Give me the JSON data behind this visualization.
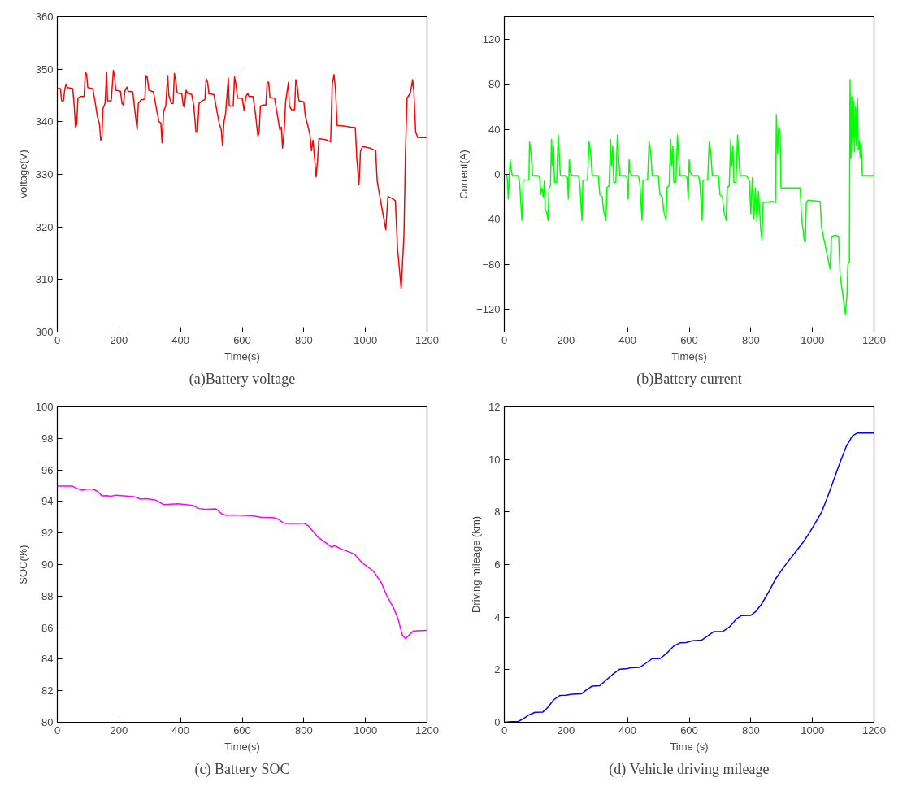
{
  "chart_data": [
    {
      "type": "line",
      "title": "(a)Battery voltage",
      "xlabel": "Time(s)",
      "ylabel": "Voltage(V)",
      "xlim": [
        0,
        1200
      ],
      "xticks": [
        0,
        200,
        400,
        600,
        800,
        1000,
        1200
      ],
      "ylim": [
        300,
        360
      ],
      "yticks": [
        300,
        310,
        320,
        330,
        340,
        350,
        360
      ],
      "grid": false,
      "series": [
        {
          "color": "#ff0000",
          "x": [
            0,
            10,
            14,
            20,
            24,
            28,
            33,
            50,
            55,
            59,
            63,
            67,
            75,
            87,
            91,
            95,
            99,
            115,
            122,
            130,
            137,
            141,
            145,
            148,
            155,
            160,
            163,
            175,
            182,
            186,
            190,
            205,
            210,
            214,
            220,
            226,
            230,
            245,
            252,
            259,
            263,
            272,
            284,
            288,
            292,
            297,
            312,
            320,
            330,
            336,
            340,
            345,
            352,
            358,
            362,
            370,
            376,
            380,
            384,
            389,
            404,
            409,
            413,
            418,
            424,
            436,
            443,
            450,
            455,
            460,
            470,
            479,
            483,
            488,
            492,
            508,
            515,
            526,
            532,
            536,
            541,
            546,
            555,
            558,
            571,
            575,
            580,
            585,
            600,
            606,
            612,
            618,
            622,
            635,
            642,
            651,
            655,
            659,
            668,
            677,
            681,
            686,
            690,
            705,
            712,
            722,
            727,
            731,
            736,
            741,
            750,
            753,
            760,
            770,
            774,
            778,
            784,
            800,
            805,
            812,
            816,
            820,
            825,
            830,
            835,
            840,
            845,
            849,
            870,
            887,
            892,
            898,
            903,
            908,
            930,
            950,
            967,
            972,
            979,
            984,
            991,
            1015,
            1033,
            1038,
            1052,
            1066,
            1073,
            1090,
            1097,
            1104,
            1116,
            1125,
            1130,
            1135,
            1146,
            1153,
            1157,
            1163,
            1170,
            1200
          ],
          "values": [
            346.3,
            346.3,
            344,
            344,
            346,
            347.2,
            346.5,
            346.3,
            343,
            339,
            339.5,
            344.5,
            344.8,
            344.8,
            349.5,
            349,
            346.5,
            346.3,
            344,
            341,
            339.5,
            336.5,
            337,
            342.5,
            343.5,
            349.5,
            344,
            344,
            349.8,
            348.5,
            346,
            345.8,
            343.5,
            343.2,
            346,
            346.6,
            345.8,
            345.7,
            342,
            338.5,
            343.5,
            344.2,
            344.3,
            348.8,
            348.5,
            346,
            345.7,
            343,
            340,
            339.8,
            336,
            342,
            343,
            348.8,
            345,
            343.5,
            343.5,
            349.2,
            348,
            345.5,
            345.3,
            343,
            342.8,
            346,
            345.4,
            345.2,
            343,
            338,
            338,
            343.5,
            344,
            344.2,
            348.2,
            347.5,
            345.3,
            345.2,
            343,
            339.5,
            338.5,
            335.5,
            340,
            341.5,
            348.3,
            343,
            343,
            348.5,
            347,
            344.5,
            344.5,
            342.2,
            344.8,
            345.4,
            344.8,
            344.8,
            342,
            337.3,
            338,
            343,
            343.2,
            343.2,
            347.5,
            347.5,
            344.6,
            344.5,
            342,
            338.5,
            339,
            335,
            338,
            343.8,
            347.5,
            343,
            342.3,
            342.3,
            348,
            347,
            344,
            343.8,
            341,
            339.5,
            338.5,
            337.5,
            334.5,
            336.5,
            333,
            329.5,
            333,
            336.8,
            336.6,
            336.2,
            347,
            349,
            346,
            339.3,
            339.2,
            339,
            338.9,
            333,
            328,
            334.5,
            335.3,
            335,
            334.5,
            328.8,
            324,
            319.5,
            325.8,
            325.3,
            325,
            316,
            308.2,
            318.5,
            334.5,
            344.5,
            345.5,
            348,
            346,
            338,
            337,
            337
          ]
        }
      ]
    },
    {
      "type": "line",
      "title": "(b)Battery current",
      "xlabel": "Time(s)",
      "ylabel": "Current(A)",
      "xlim": [
        0,
        1200
      ],
      "xticks": [
        0,
        200,
        400,
        600,
        800,
        1000,
        1200
      ],
      "ylim": [
        -140,
        140
      ],
      "yticks": [
        -120,
        -80,
        -40,
        0,
        40,
        80,
        120
      ],
      "grid": false,
      "series": [
        {
          "color": "#00ff00",
          "x": [
            0,
            8,
            10,
            13,
            16,
            19,
            22,
            26,
            45,
            50,
            57,
            60,
            61,
            75,
            80,
            82,
            86,
            92,
            110,
            115,
            118,
            122,
            126,
            130,
            133,
            137,
            142,
            145,
            150,
            153,
            156,
            160,
            163,
            170,
            175,
            178,
            182,
            200,
            205,
            208,
            211,
            214,
            220,
            240,
            245,
            252,
            255,
            270,
            275,
            280,
            285,
            305,
            310,
            318,
            322,
            330,
            333,
            340,
            345,
            348,
            352,
            355,
            362,
            367,
            370,
            375,
            393,
            398,
            402,
            405,
            408,
            415,
            435,
            440,
            447,
            450,
            465,
            470,
            475,
            480,
            500,
            505,
            513,
            517,
            525,
            528,
            535,
            540,
            543,
            547,
            550,
            557,
            562,
            565,
            570,
            588,
            593,
            597,
            600,
            603,
            610,
            630,
            635,
            642,
            645,
            660,
            665,
            670,
            675,
            695,
            700,
            708,
            712,
            720,
            723,
            730,
            735,
            738,
            742,
            745,
            752,
            757,
            760,
            765,
            785,
            795,
            800,
            805,
            810,
            815,
            820,
            825,
            832,
            836,
            840,
            870,
            880,
            883,
            887,
            890,
            895,
            898,
            960,
            965,
            970,
            973,
            977,
            980,
            985,
            1025,
            1030,
            1043,
            1057,
            1062,
            1075,
            1085,
            1090,
            1100,
            1107,
            1112,
            1115,
            1120,
            1122,
            1125,
            1128,
            1131,
            1134,
            1137,
            1140,
            1143,
            1146,
            1149,
            1152,
            1155,
            1158,
            1162,
            1200
          ],
          "values": [
            0,
            0,
            -5,
            -22,
            -5,
            13,
            5,
            -1,
            -1,
            -8,
            -41,
            -20,
            -5,
            -5,
            -5,
            29,
            20,
            -1,
            -1,
            -3,
            -18,
            -12,
            -20,
            -6,
            -32,
            -33,
            -41,
            -12,
            -10,
            31,
            8,
            25,
            -7,
            -7,
            35,
            20,
            -1,
            -1,
            -3,
            -22,
            13,
            2,
            -1,
            -1,
            -8,
            -41,
            -5,
            -5,
            29,
            20,
            -1,
            -1,
            -18,
            -20,
            -32,
            -41,
            -12,
            -10,
            31,
            8,
            25,
            -7,
            -7,
            35,
            20,
            -1,
            -1,
            -3,
            -22,
            13,
            2,
            -1,
            -1,
            -8,
            -41,
            -5,
            -5,
            29,
            20,
            -1,
            -1,
            -18,
            -20,
            -32,
            -41,
            -12,
            -10,
            31,
            8,
            25,
            -7,
            -7,
            35,
            20,
            -1,
            -1,
            -3,
            -22,
            13,
            2,
            -1,
            -1,
            -8,
            -41,
            -5,
            -5,
            29,
            20,
            -1,
            -1,
            -18,
            -20,
            -32,
            -41,
            -12,
            -10,
            31,
            8,
            25,
            -7,
            -7,
            35,
            20,
            -1,
            -1,
            -5,
            -35,
            -3,
            -40,
            -12,
            -42,
            -15,
            -48,
            -59,
            -25,
            -24,
            -25,
            53,
            18,
            42,
            38,
            -12,
            -12,
            -40,
            -50,
            -58,
            -60,
            -25,
            -23,
            -24,
            -48,
            -65,
            -84,
            -55,
            -54,
            -55,
            -90,
            -110,
            -124,
            -108,
            -80,
            -78,
            84,
            15,
            69,
            18,
            65,
            20,
            60,
            25,
            68,
            22,
            30,
            15,
            30,
            -1,
            -1
          ]
        }
      ]
    },
    {
      "type": "line",
      "title": "(c) Battery SOC",
      "xlabel": "Time(s)",
      "ylabel": "SOC(%)",
      "xlim": [
        0,
        1200
      ],
      "xticks": [
        0,
        200,
        400,
        600,
        800,
        1000,
        1200
      ],
      "ylim": [
        80,
        100
      ],
      "yticks": [
        80,
        82,
        84,
        86,
        88,
        90,
        92,
        94,
        96,
        98,
        100
      ],
      "grid": false,
      "series": [
        {
          "color": "#ff00ff",
          "x": [
            0,
            50,
            60,
            80,
            95,
            115,
            130,
            145,
            160,
            175,
            190,
            250,
            270,
            290,
            320,
            345,
            360,
            390,
            440,
            460,
            480,
            515,
            535,
            550,
            570,
            610,
            630,
            660,
            700,
            715,
            735,
            760,
            800,
            815,
            830,
            845,
            870,
            890,
            900,
            920,
            950,
            965,
            985,
            1000,
            1025,
            1050,
            1070,
            1090,
            1105,
            1120,
            1130,
            1145,
            1155,
            1200
          ],
          "values": [
            94.97,
            94.97,
            94.85,
            94.72,
            94.78,
            94.78,
            94.65,
            94.35,
            94.37,
            94.33,
            94.4,
            94.3,
            94.15,
            94.18,
            94.08,
            93.8,
            93.82,
            93.85,
            93.75,
            93.55,
            93.5,
            93.53,
            93.2,
            93.12,
            93.15,
            93.12,
            93.1,
            93.0,
            92.98,
            92.9,
            92.62,
            92.6,
            92.62,
            92.45,
            92.1,
            91.75,
            91.4,
            91.1,
            91.2,
            91.0,
            90.78,
            90.65,
            90.2,
            89.95,
            89.6,
            88.9,
            88.0,
            87.3,
            86.6,
            85.5,
            85.3,
            85.6,
            85.78,
            85.82
          ]
        }
      ]
    },
    {
      "type": "line",
      "title": "(d) Vehicle driving mileage",
      "xlabel": "Time (s)",
      "ylabel": "Driving mileage (km)",
      "xlim": [
        0,
        1200
      ],
      "xticks": [
        0,
        200,
        400,
        600,
        800,
        1000,
        1200
      ],
      "ylim": [
        0,
        12
      ],
      "yticks": [
        0,
        2,
        4,
        6,
        8,
        10,
        12
      ],
      "grid": false,
      "series": [
        {
          "color": "#0000ff",
          "x": [
            0,
            20,
            45,
            60,
            80,
            100,
            125,
            140,
            160,
            180,
            200,
            220,
            250,
            265,
            285,
            310,
            330,
            355,
            375,
            395,
            410,
            440,
            460,
            480,
            505,
            525,
            550,
            570,
            590,
            610,
            640,
            660,
            680,
            710,
            730,
            755,
            770,
            800,
            815,
            835,
            860,
            880,
            910,
            940,
            970,
            990,
            1010,
            1030,
            1050,
            1070,
            1090,
            1110,
            1130,
            1145,
            1200
          ],
          "values": [
            0,
            0.02,
            0.03,
            0.12,
            0.28,
            0.38,
            0.39,
            0.55,
            0.85,
            1.02,
            1.03,
            1.07,
            1.08,
            1.22,
            1.38,
            1.39,
            1.6,
            1.85,
            2.02,
            2.03,
            2.07,
            2.09,
            2.25,
            2.42,
            2.42,
            2.6,
            2.9,
            3.02,
            3.03,
            3.1,
            3.12,
            3.28,
            3.45,
            3.46,
            3.62,
            3.95,
            4.06,
            4.07,
            4.2,
            4.5,
            5.0,
            5.45,
            5.95,
            6.4,
            6.85,
            7.2,
            7.6,
            8.0,
            8.6,
            9.25,
            9.9,
            10.5,
            10.9,
            11.0,
            11.0
          ]
        }
      ]
    }
  ]
}
